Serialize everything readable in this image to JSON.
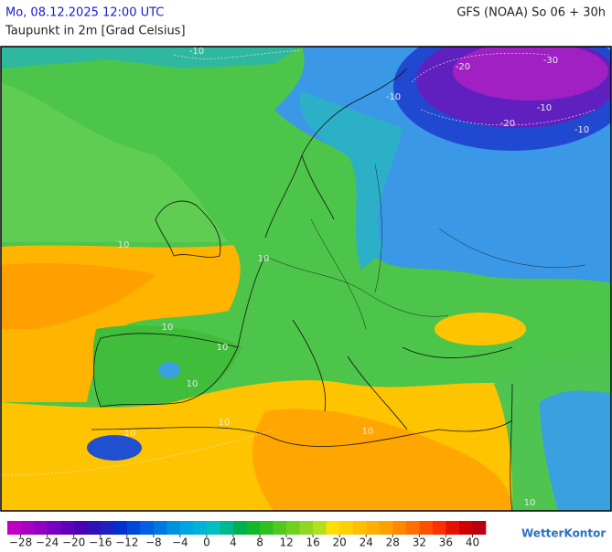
{
  "header": {
    "date": "Mo, 08.12.2025 12:00 UTC",
    "model": "GFS (NOAA) So 06 + 30h",
    "variable": "Taupunkt in 2m [Grad Celsius]"
  },
  "colorbar": {
    "lim": [
      -30,
      42
    ],
    "colors": [
      "#c000c0",
      "#a800c0",
      "#9000c0",
      "#7800c0",
      "#6000b8",
      "#4800b0",
      "#3010b8",
      "#2020c0",
      "#0030d0",
      "#0048dc",
      "#0060e0",
      "#0078e0",
      "#0090e0",
      "#00a4e0",
      "#00b4d8",
      "#00c0c0",
      "#00b890",
      "#00b050",
      "#10b830",
      "#30c020",
      "#50c820",
      "#70d020",
      "#90d820",
      "#b0e020",
      "#ffe000",
      "#ffd000",
      "#ffc000",
      "#ffb000",
      "#ffa000",
      "#ff8800",
      "#ff7000",
      "#ff5000",
      "#ff3000",
      "#e81000",
      "#d00000",
      "#b80010"
    ],
    "ticks": [
      {
        "value": -28,
        "label": "−28"
      },
      {
        "value": -24,
        "label": "−24"
      },
      {
        "value": -20,
        "label": "−20"
      },
      {
        "value": -16,
        "label": "−16"
      },
      {
        "value": -12,
        "label": "−12"
      },
      {
        "value": -8,
        "label": "−8"
      },
      {
        "value": -4,
        "label": "−4"
      },
      0,
      4,
      8,
      12,
      16,
      20,
      24,
      28,
      32,
      36,
      40
    ]
  },
  "contour_labels": [
    -10,
    -10,
    -20,
    -30,
    -20,
    -10,
    -10,
    10,
    10,
    10,
    10,
    10,
    10,
    10,
    10,
    10
  ],
  "brand": "WetterKontor"
}
